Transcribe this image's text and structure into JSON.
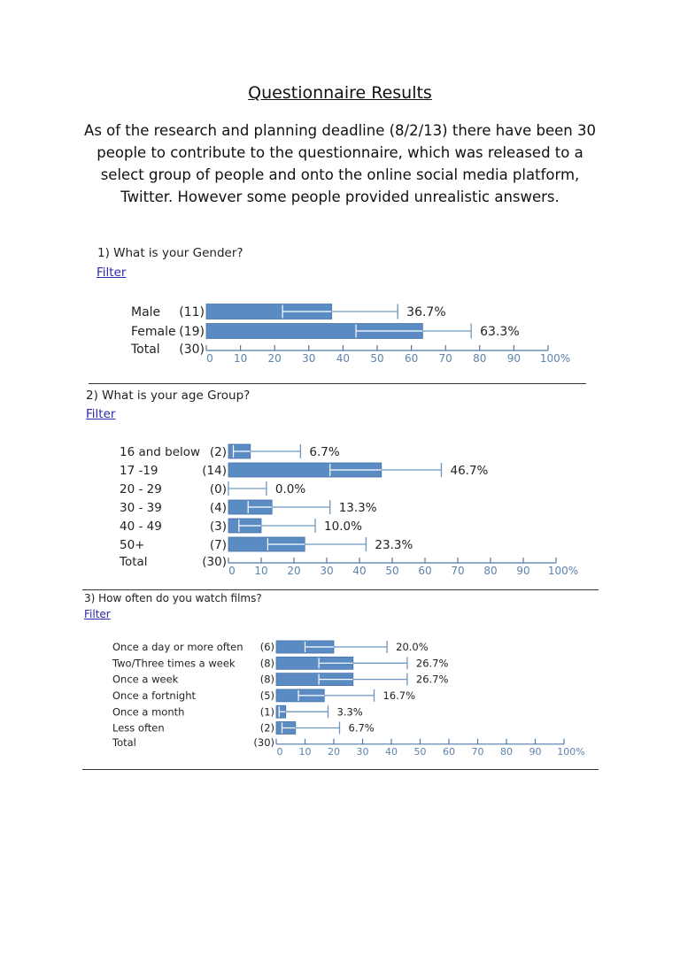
{
  "title": "Questionnaire Results",
  "intro": "As of the research and planning deadline (8/2/13) there have been 30 people to contribute to the questionnaire, which was released to a select group of people and onto the online social media platform, Twitter. However some people provided unrealistic answers.",
  "colors": {
    "bar": "#5b8bc3",
    "bar_border": "#4a74a8",
    "whisker": "#6f96c2",
    "axis": "#4f79a8",
    "tick_label": "#5d82ad",
    "link": "#2a2aa8"
  },
  "chart_data": [
    {
      "type": "bar",
      "question": "1)    What is your Gender?",
      "filter": "Filter",
      "xlim": [
        0,
        100
      ],
      "ticks": [
        "0",
        "10",
        "20",
        "30",
        "40",
        "50",
        "60",
        "70",
        "80",
        "90",
        "100%"
      ],
      "categories": [
        "Male",
        "Female"
      ],
      "counts": [
        "(11)",
        "(19)"
      ],
      "values": [
        36.7,
        63.3
      ],
      "labels": [
        "36.7%",
        "63.3%"
      ],
      "lower": [
        22.3,
        43.8
      ],
      "upper": [
        56,
        77.5
      ],
      "total_label": "Total",
      "total_count": "(30)"
    },
    {
      "type": "bar",
      "question": "2)    What is your age Group?",
      "filter": "Filter",
      "xlim": [
        0,
        100
      ],
      "ticks": [
        "0",
        "10",
        "20",
        "30",
        "40",
        "50",
        "60",
        "70",
        "80",
        "90",
        "100%"
      ],
      "categories": [
        "16 and below",
        "17 -19",
        "20 - 29",
        "30 - 39",
        "40 - 49",
        "50+"
      ],
      "counts": [
        "(2)",
        "(14)",
        "(0)",
        "(4)",
        "(3)",
        "(7)"
      ],
      "values": [
        6.7,
        46.7,
        0,
        13.3,
        10,
        23.3
      ],
      "labels": [
        "6.7%",
        "46.7%",
        "0.0%",
        "13.3%",
        "10.0%",
        "23.3%"
      ],
      "lower": [
        1.5,
        31,
        0,
        6,
        3.2,
        12
      ],
      "upper": [
        22,
        65,
        11.6,
        31,
        26.5,
        42
      ],
      "total_label": "Total",
      "total_count": "(30)"
    },
    {
      "type": "bar",
      "question": "3)     How often do you watch films?",
      "filter": "Filter",
      "xlim": [
        0,
        100
      ],
      "ticks": [
        "0",
        "10",
        "20",
        "30",
        "40",
        "50",
        "60",
        "70",
        "80",
        "90",
        "100%"
      ],
      "categories": [
        "Once a day or more often",
        "Two/Three times a week",
        "Once a week",
        "Once a fortnight",
        "Once a month",
        "Less often"
      ],
      "counts": [
        "(6)",
        "(8)",
        "(8)",
        "(5)",
        "(1)",
        "(2)"
      ],
      "values": [
        20,
        26.7,
        26.7,
        16.7,
        3.3,
        6.7
      ],
      "labels": [
        "20.0%",
        "26.7%",
        "26.7%",
        "16.7%",
        "3.3%",
        "6.7%"
      ],
      "lower": [
        10,
        14.8,
        14.8,
        7.7,
        1,
        2
      ],
      "upper": [
        38.5,
        45.5,
        45.5,
        34,
        18,
        22
      ],
      "total_label": "Total",
      "total_count": "(30)"
    }
  ]
}
